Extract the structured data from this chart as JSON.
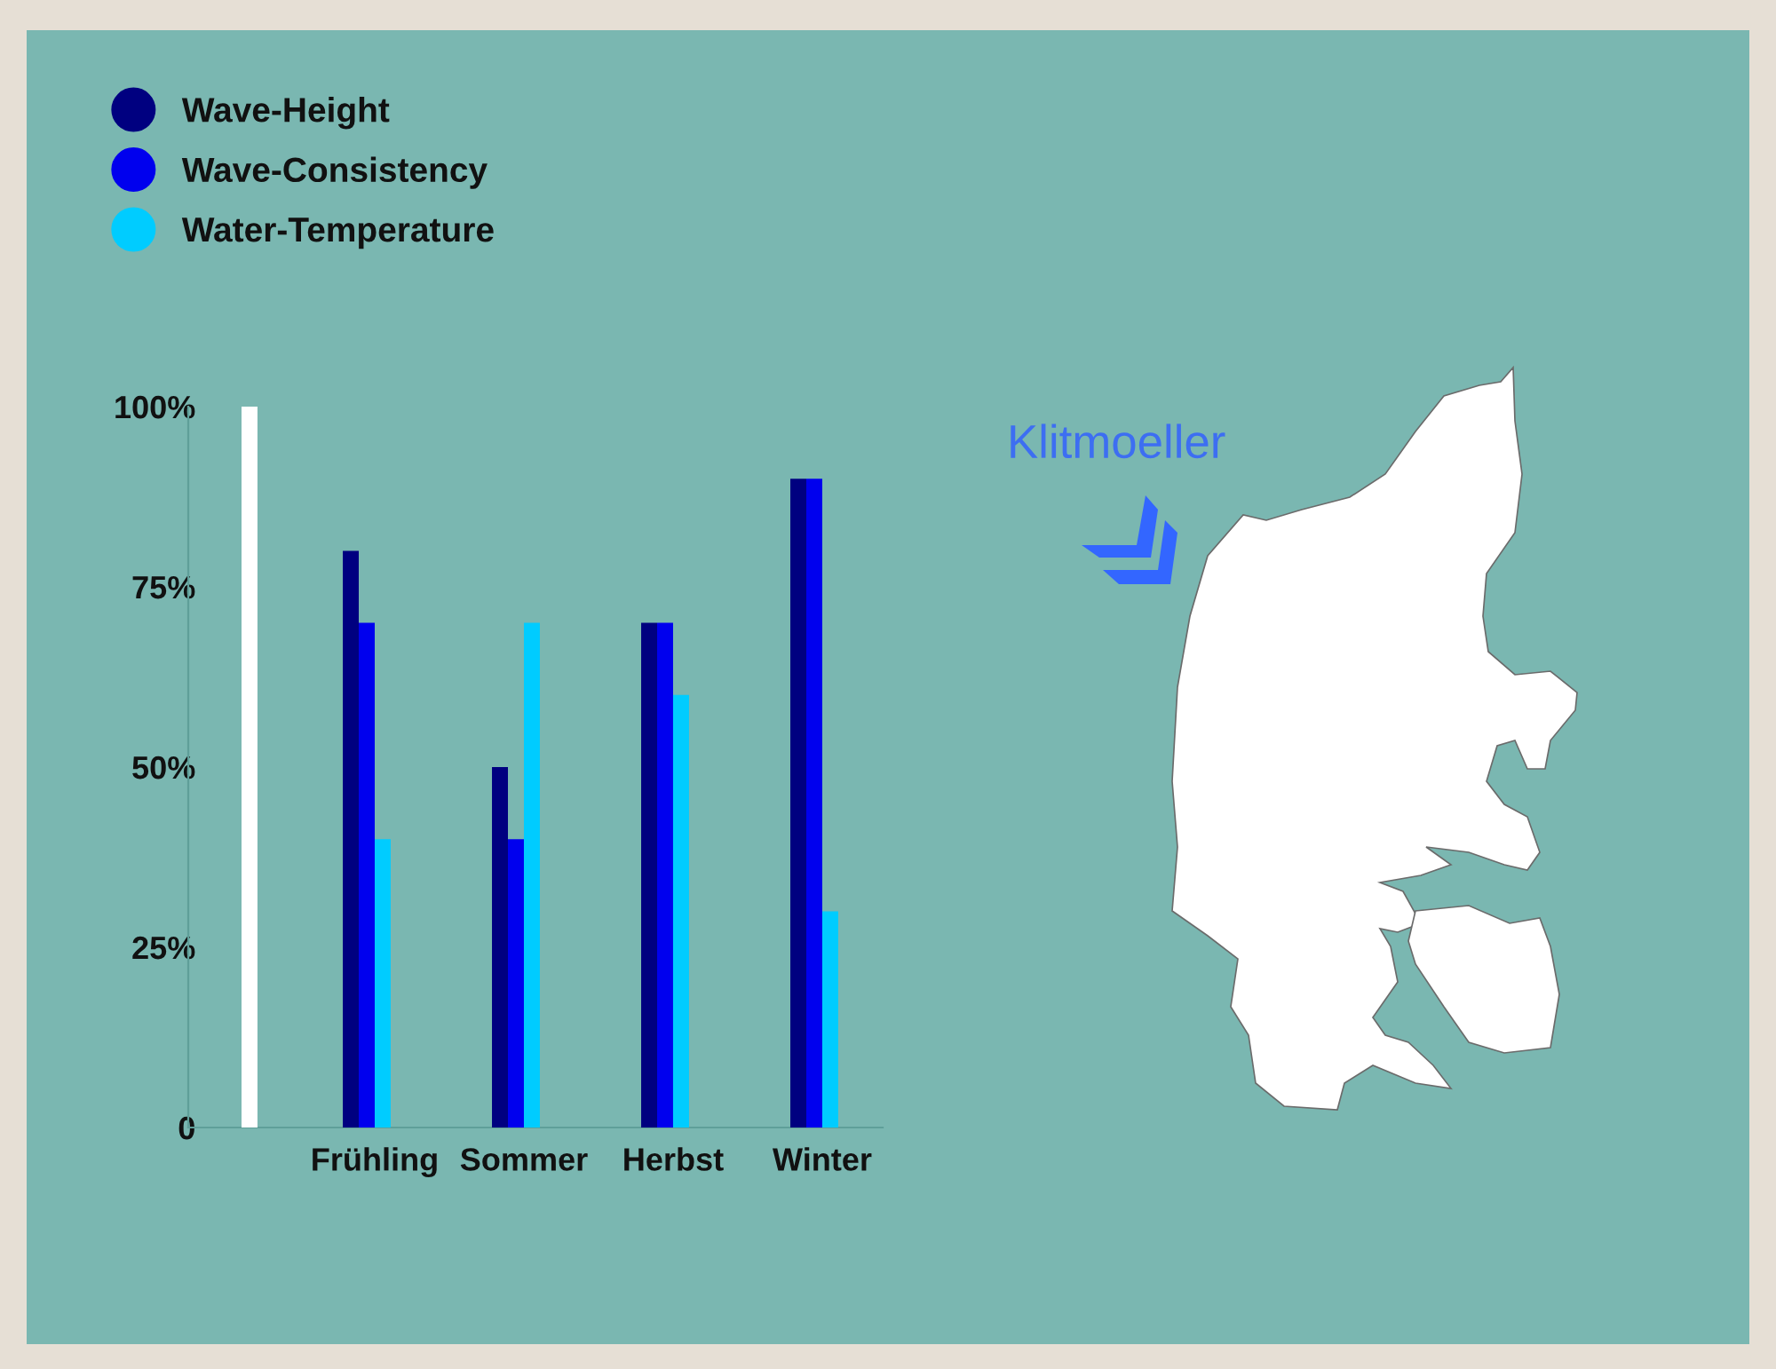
{
  "chart_data": {
    "type": "bar",
    "categories": [
      null,
      null,
      "Frühling",
      null,
      "Sommer",
      null,
      "Herbst",
      null,
      "Winter"
    ],
    "series": [
      {
        "name": "Wave-Height",
        "color": "#000080",
        "values": [
          null,
          null,
          80,
          null,
          50,
          null,
          70,
          null,
          90
        ]
      },
      {
        "name": "Wave-Consistency",
        "color": "#0000ee",
        "values": [
          null,
          null,
          70,
          null,
          40,
          null,
          70,
          null,
          90
        ]
      },
      {
        "name": "Water-Temperature",
        "color": "#00ccff",
        "values": [
          null,
          null,
          40,
          null,
          70,
          null,
          60,
          null,
          30
        ]
      },
      {
        "color": "#ffffff",
        "values": [
          100,
          null,
          null,
          null,
          null,
          null,
          null,
          null,
          null
        ]
      }
    ],
    "ylim": [
      0,
      100
    ],
    "yticks": [
      {
        "value": 0,
        "label": "0"
      },
      {
        "value": 25,
        "label": "25%"
      },
      {
        "value": 50,
        "label": "50%"
      },
      {
        "value": 75,
        "label": "75%"
      },
      {
        "value": 100,
        "label": "100%"
      }
    ],
    "legend": "top left",
    "annotations": [
      "Klitmoeller"
    ]
  }
}
